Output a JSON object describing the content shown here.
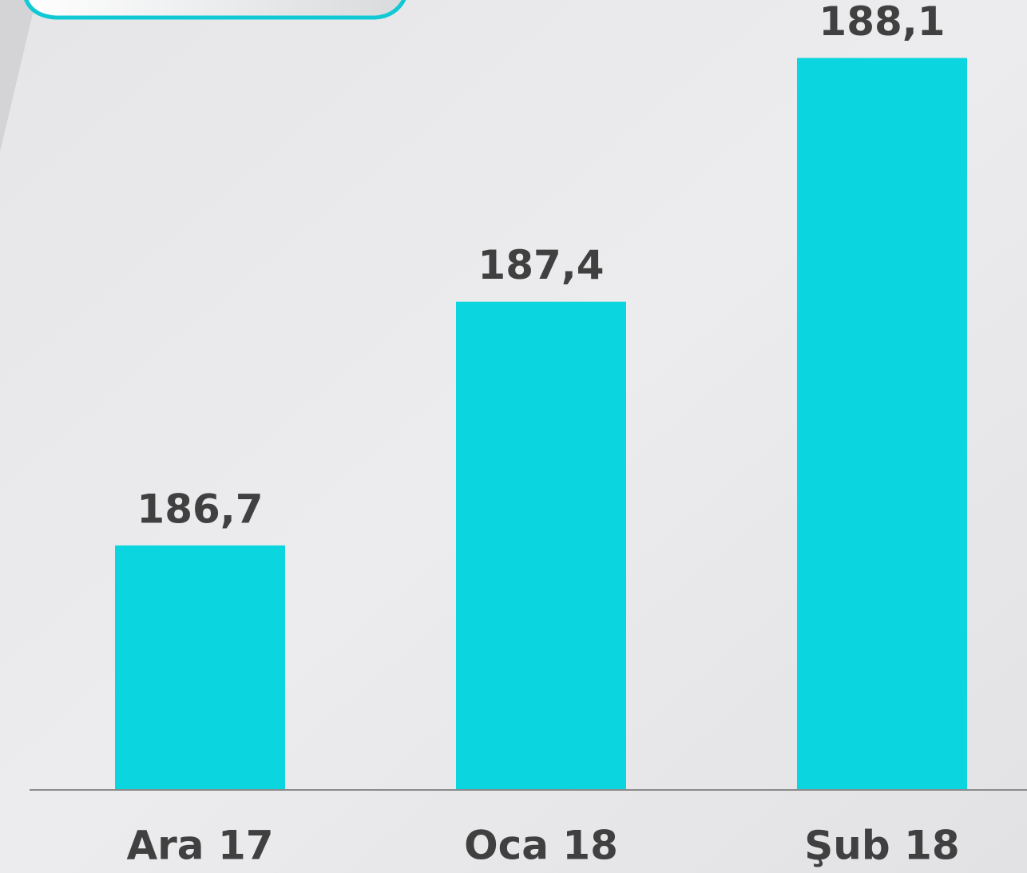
{
  "chart_data": {
    "type": "bar",
    "categories": [
      "Ara 17",
      "Oca 18",
      "Şub 18"
    ],
    "values": [
      186.7,
      187.4,
      188.1
    ],
    "value_labels": [
      "186,7",
      "187,4",
      "188,1"
    ],
    "color": "#0bd6df",
    "ylim": [
      186,
      188.2
    ]
  }
}
